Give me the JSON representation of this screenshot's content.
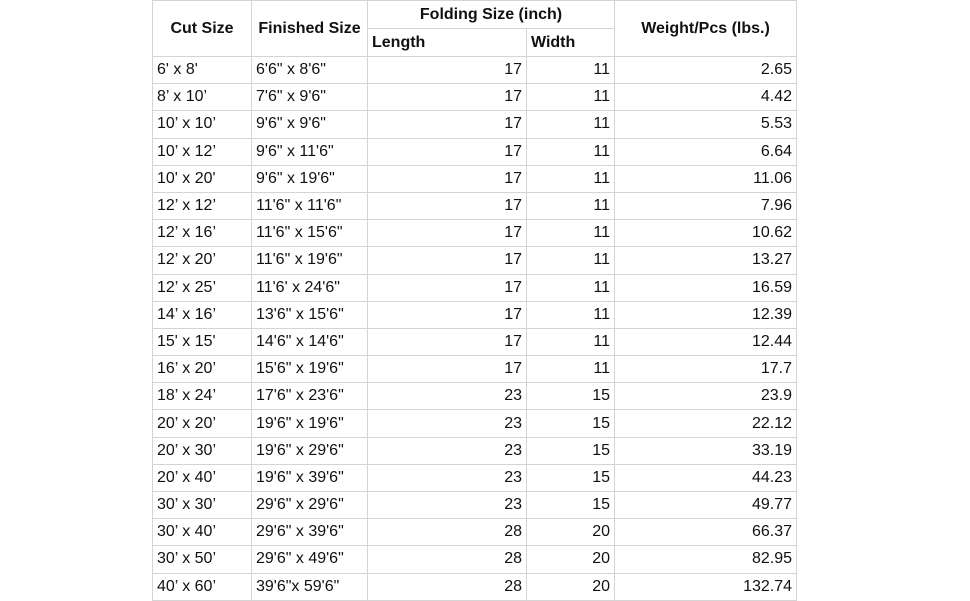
{
  "headers": {
    "cut_size": "Cut Size",
    "finished_size": "Finished Size",
    "folding_size": "Folding Size (inch)",
    "length": "Length",
    "width": "Width",
    "weight": "Weight/Pcs (lbs.)"
  },
  "rows": [
    {
      "cut": "6' x 8'",
      "finished": "6'6\" x 8'6\"",
      "length": "17",
      "width": "11",
      "weight": "2.65"
    },
    {
      "cut": "8’ x 10’",
      "finished": "7'6\" x 9'6\"",
      "length": "17",
      "width": "11",
      "weight": "4.42"
    },
    {
      "cut": "10’ x 10’",
      "finished": "9'6\" x 9'6\"",
      "length": "17",
      "width": "11",
      "weight": "5.53"
    },
    {
      "cut": "10’ x 12’",
      "finished": "9'6\" x 11'6\"",
      "length": "17",
      "width": "11",
      "weight": "6.64"
    },
    {
      "cut": "10' x 20'",
      "finished": "9'6\" x 19'6\"",
      "length": "17",
      "width": "11",
      "weight": "11.06"
    },
    {
      "cut": "12’ x 12’",
      "finished": "11'6\" x 11'6\"",
      "length": "17",
      "width": "11",
      "weight": "7.96"
    },
    {
      "cut": "12’ x 16’",
      "finished": "11'6\" x 15'6\"",
      "length": "17",
      "width": "11",
      "weight": "10.62"
    },
    {
      "cut": "12’ x 20’",
      "finished": "11'6\" x 19'6\"",
      "length": "17",
      "width": "11",
      "weight": "13.27"
    },
    {
      "cut": "12’ x 25’",
      "finished": "11'6' x 24'6\"",
      "length": "17",
      "width": "11",
      "weight": "16.59"
    },
    {
      "cut": "14’ x 16’",
      "finished": "13'6\" x 15'6\"",
      "length": "17",
      "width": "11",
      "weight": "12.39"
    },
    {
      "cut": "15' x 15'",
      "finished": "14'6\" x 14'6\"",
      "length": "17",
      "width": "11",
      "weight": "12.44"
    },
    {
      "cut": "16’ x 20’",
      "finished": "15'6\" x 19'6\"",
      "length": "17",
      "width": "11",
      "weight": "17.7"
    },
    {
      "cut": "18’ x 24’",
      "finished": "17'6\" x 23'6\"",
      "length": "23",
      "width": "15",
      "weight": "23.9"
    },
    {
      "cut": "20’ x 20’",
      "finished": "19'6\" x 19'6\"",
      "length": "23",
      "width": "15",
      "weight": "22.12"
    },
    {
      "cut": "20’ x 30’",
      "finished": "19'6\" x 29'6\"",
      "length": "23",
      "width": "15",
      "weight": "33.19"
    },
    {
      "cut": "20’ x 40’",
      "finished": "19'6\" x 39'6\"",
      "length": "23",
      "width": "15",
      "weight": "44.23"
    },
    {
      "cut": "30’ x 30’",
      "finished": "29'6\" x 29'6\"",
      "length": "23",
      "width": "15",
      "weight": "49.77"
    },
    {
      "cut": "30’ x 40’",
      "finished": "29'6\" x 39'6\"",
      "length": "28",
      "width": "20",
      "weight": "66.37"
    },
    {
      "cut": "30’ x 50’",
      "finished": "29'6\" x 49'6\"",
      "length": "28",
      "width": "20",
      "weight": "82.95"
    },
    {
      "cut": "40’ x 60’",
      "finished": "39'6\"x 59'6\"",
      "length": "28",
      "width": "20",
      "weight": "132.74"
    }
  ]
}
